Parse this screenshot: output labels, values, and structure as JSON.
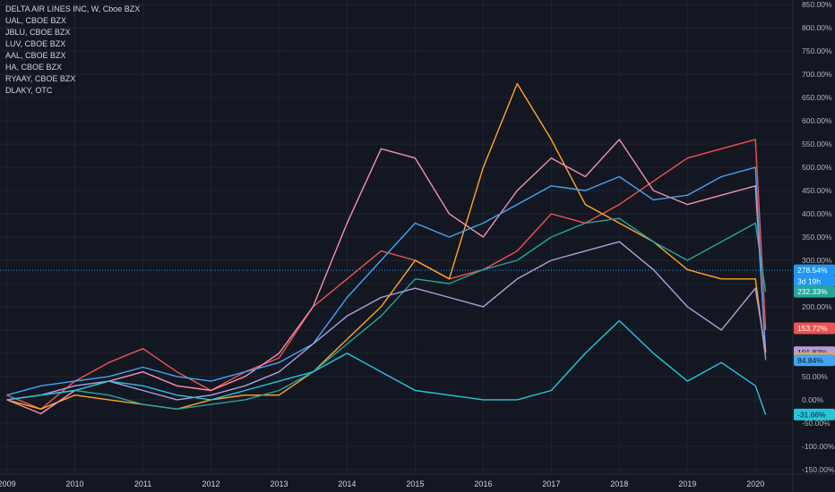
{
  "legend": {
    "main": "DELTA AIR LINES INC, W, Cboe BZX",
    "items": [
      "UAL, CBOE BZX",
      "JBLU, CBOE BZX",
      "LUV, CBOE BZX",
      "AAL, CBOE BZX",
      "HA, CBOE BZX",
      "RYAAY, CBOE BZX",
      "DLAKY, OTC"
    ]
  },
  "chart_data": {
    "type": "line",
    "yunit": "%",
    "ylim": [
      -160,
      860
    ],
    "xlim": [
      2008.9,
      2020.55
    ],
    "yticks": [
      -150,
      -100,
      -50,
      0,
      50,
      100,
      150,
      200,
      250,
      300,
      350,
      400,
      450,
      500,
      550,
      600,
      650,
      700,
      750,
      800,
      850
    ],
    "ytick_labels": [
      "-150.00%",
      "-100.00%",
      "-50.00%",
      "0.00%",
      "50.00%",
      "100.00%",
      "150.00%",
      "200.00%",
      "250.00%",
      "300.00%",
      "350.00%",
      "400.00%",
      "450.00%",
      "500.00%",
      "550.00%",
      "600.00%",
      "650.00%",
      "700.00%",
      "750.00%",
      "800.00%",
      "850.00%"
    ],
    "xticks": [
      2009,
      2010,
      2011,
      2012,
      2013,
      2014,
      2015,
      2016,
      2017,
      2018,
      2019,
      2020
    ],
    "xtick_labels": [
      "2009",
      "2010",
      "2011",
      "2012",
      "2013",
      "2014",
      "2015",
      "2016",
      "2017",
      "2018",
      "2019",
      "2020"
    ],
    "crosshair_y": 278.54,
    "grid": true,
    "series": [
      {
        "name": "UAL",
        "color": "#ef5350",
        "x": [
          2009,
          2009.5,
          2010,
          2010.5,
          2011,
          2011.5,
          2012,
          2012.5,
          2013,
          2013.5,
          2014,
          2014.5,
          2015,
          2015.5,
          2016,
          2016.5,
          2017,
          2017.5,
          2018,
          2018.5,
          2019,
          2019.5,
          2020,
          2020.15
        ],
        "y": [
          10,
          -20,
          40,
          80,
          110,
          60,
          20,
          60,
          90,
          200,
          260,
          320,
          300,
          260,
          280,
          320,
          400,
          380,
          420,
          470,
          520,
          540,
          560,
          150
        ]
      },
      {
        "name": "JBLU",
        "color": "#ffa726",
        "x": [
          2009,
          2009.5,
          2010,
          2010.5,
          2011,
          2011.5,
          2012,
          2012.5,
          2013,
          2013.5,
          2014,
          2014.5,
          2015,
          2015.5,
          2016,
          2016.5,
          2017,
          2017.5,
          2018,
          2018.5,
          2019,
          2019.5,
          2020,
          2020.15
        ],
        "y": [
          0,
          -20,
          10,
          0,
          -10,
          -20,
          0,
          10,
          10,
          60,
          130,
          200,
          300,
          260,
          500,
          680,
          560,
          420,
          380,
          340,
          280,
          260,
          260,
          89
        ]
      },
      {
        "name": "LUV",
        "color": "#26a69a",
        "x": [
          2009,
          2009.5,
          2010,
          2010.5,
          2011,
          2011.5,
          2012,
          2012.5,
          2013,
          2013.5,
          2014,
          2014.5,
          2015,
          2015.5,
          2016,
          2016.5,
          2017,
          2017.5,
          2018,
          2018.5,
          2019,
          2019.5,
          2020,
          2020.15
        ],
        "y": [
          0,
          10,
          20,
          10,
          -10,
          -20,
          -10,
          0,
          20,
          60,
          120,
          180,
          260,
          250,
          280,
          300,
          350,
          380,
          390,
          340,
          300,
          340,
          380,
          232
        ]
      },
      {
        "name": "AAL",
        "color": "#f48fb1",
        "x": [
          2009,
          2009.5,
          2010,
          2010.5,
          2011,
          2011.5,
          2012,
          2012.5,
          2013,
          2013.5,
          2014,
          2014.5,
          2015,
          2015.5,
          2016,
          2016.5,
          2017,
          2017.5,
          2018,
          2018.5,
          2019,
          2019.5,
          2020,
          2020.15
        ],
        "y": [
          0,
          -30,
          20,
          40,
          60,
          30,
          20,
          50,
          100,
          200,
          380,
          540,
          520,
          400,
          350,
          450,
          520,
          480,
          560,
          450,
          420,
          440,
          460,
          102
        ]
      },
      {
        "name": "HA",
        "color": "#42a5f5",
        "x": [
          2009,
          2009.5,
          2010,
          2010.5,
          2011,
          2011.5,
          2012,
          2012.5,
          2013,
          2013.5,
          2014,
          2014.5,
          2015,
          2015.5,
          2016,
          2016.5,
          2017,
          2017.5,
          2018,
          2018.5,
          2019,
          2019.5,
          2020,
          2020.15
        ],
        "y": [
          10,
          30,
          40,
          50,
          70,
          50,
          40,
          60,
          80,
          120,
          220,
          300,
          380,
          350,
          380,
          420,
          460,
          450,
          480,
          430,
          440,
          480,
          500,
          85
        ]
      },
      {
        "name": "RYAAY",
        "color": "#b39ddb",
        "x": [
          2009,
          2009.5,
          2010,
          2010.5,
          2011,
          2011.5,
          2012,
          2012.5,
          2013,
          2013.5,
          2014,
          2014.5,
          2015,
          2015.5,
          2016,
          2016.5,
          2017,
          2017.5,
          2018,
          2018.5,
          2019,
          2019.5,
          2020,
          2020.15
        ],
        "y": [
          0,
          10,
          30,
          40,
          20,
          0,
          10,
          30,
          60,
          120,
          180,
          220,
          240,
          220,
          200,
          260,
          300,
          320,
          340,
          280,
          200,
          150,
          240,
          102
        ]
      },
      {
        "name": "DLAKY",
        "color": "#26c6da",
        "x": [
          2009,
          2009.5,
          2010,
          2010.5,
          2011,
          2011.5,
          2012,
          2012.5,
          2013,
          2013.5,
          2014,
          2014.5,
          2015,
          2015.5,
          2016,
          2016.5,
          2017,
          2017.5,
          2018,
          2018.5,
          2019,
          2019.5,
          2020,
          2020.15
        ],
        "y": [
          0,
          10,
          20,
          40,
          30,
          10,
          0,
          20,
          40,
          60,
          100,
          60,
          20,
          10,
          0,
          0,
          20,
          100,
          170,
          100,
          40,
          80,
          30,
          -32
        ]
      }
    ],
    "badges": [
      {
        "label": "278.54%",
        "value": 278.54,
        "bg": "#2196f3",
        "fg": "#ffffff"
      },
      {
        "label": "3d 19h",
        "value": 255,
        "bg": "#2196f3",
        "fg": "#ffffff"
      },
      {
        "label": "232.33%",
        "value": 232.33,
        "bg": "#26a69a",
        "fg": "#ffffff"
      },
      {
        "label": "153.72%",
        "value": 153.72,
        "bg": "#ef5350",
        "fg": "#ffffff"
      },
      {
        "label": "102.29%",
        "value": 102.29,
        "bg": "#f48fb1",
        "fg": "#131722"
      },
      {
        "label": "101.82%",
        "value": 101.82,
        "bg": "#b39ddb",
        "fg": "#131722"
      },
      {
        "label": "89.08%",
        "value": 89.08,
        "bg": "#ffa726",
        "fg": "#131722"
      },
      {
        "label": "84.84%",
        "value": 84.84,
        "bg": "#42a5f5",
        "fg": "#131722"
      },
      {
        "label": "-31.66%",
        "value": -31.66,
        "bg": "#26c6da",
        "fg": "#131722"
      }
    ]
  }
}
